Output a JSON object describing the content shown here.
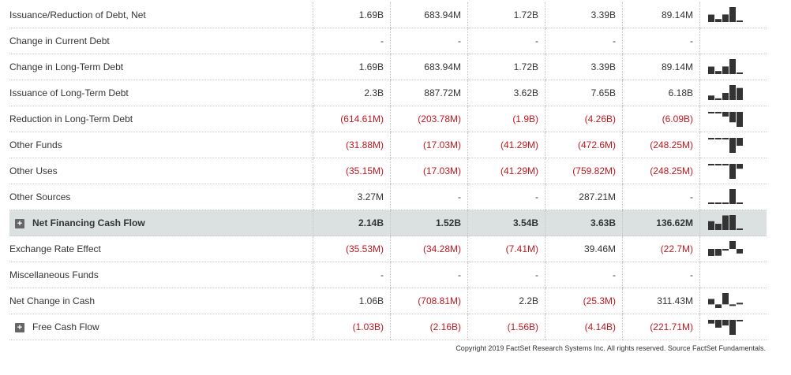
{
  "rows": [
    {
      "label": "Issuance/Reduction of Debt, Net",
      "indent": 0,
      "values": [
        "1.69B",
        "683.94M",
        "1.72B",
        "3.39B",
        "89.14M"
      ],
      "spark": [
        1.69,
        0.68,
        1.72,
        3.39,
        0.09
      ]
    },
    {
      "label": "Change in Current Debt",
      "indent": 1,
      "values": [
        "-",
        "-",
        "-",
        "-",
        "-"
      ],
      "spark": null
    },
    {
      "label": "Change in Long-Term Debt",
      "indent": 1,
      "values": [
        "1.69B",
        "683.94M",
        "1.72B",
        "3.39B",
        "89.14M"
      ],
      "spark": [
        1.69,
        0.68,
        1.72,
        3.39,
        0.09
      ]
    },
    {
      "label": "Issuance of Long-Term Debt",
      "indent": 2,
      "values": [
        "2.3B",
        "887.72M",
        "3.62B",
        "7.65B",
        "6.18B"
      ],
      "spark": [
        2.3,
        0.89,
        3.62,
        7.65,
        6.18
      ]
    },
    {
      "label": "Reduction in Long-Term Debt",
      "indent": 2,
      "values": [
        "(614.61M)",
        "(203.78M)",
        "(1.9B)",
        "(4.26B)",
        "(6.09B)"
      ],
      "spark": [
        -0.61,
        -0.2,
        -1.9,
        -4.26,
        -6.09
      ]
    },
    {
      "label": "Other Funds",
      "indent": 0,
      "values": [
        "(31.88M)",
        "(17.03M)",
        "(41.29M)",
        "(472.6M)",
        "(248.25M)"
      ],
      "spark": [
        -31.88,
        -17.03,
        -41.29,
        -472.6,
        -248.25
      ]
    },
    {
      "label": "Other Uses",
      "indent": 1,
      "values": [
        "(35.15M)",
        "(17.03M)",
        "(41.29M)",
        "(759.82M)",
        "(248.25M)"
      ],
      "spark": [
        -35.15,
        -17.03,
        -41.29,
        -759.82,
        -248.25
      ]
    },
    {
      "label": "Other Sources",
      "indent": 1,
      "values": [
        "3.27M",
        "-",
        "-",
        "287.21M",
        "-"
      ],
      "spark": [
        3.27,
        0,
        0,
        287.21,
        0
      ]
    },
    {
      "label": "Net Financing Cash Flow",
      "indent": 0,
      "highlight": true,
      "expand": true,
      "values": [
        "2.14B",
        "1.52B",
        "3.54B",
        "3.63B",
        "136.62M"
      ],
      "spark": [
        2.14,
        1.52,
        3.54,
        3.63,
        0.14
      ]
    },
    {
      "label": "Exchange Rate Effect",
      "indent": 0,
      "values": [
        "(35.53M)",
        "(34.28M)",
        "(7.41M)",
        "39.46M",
        "(22.7M)"
      ],
      "spark": [
        -35.53,
        -34.28,
        -7.41,
        39.46,
        -22.7
      ]
    },
    {
      "label": "Miscellaneous Funds",
      "indent": 0,
      "values": [
        "-",
        "-",
        "-",
        "-",
        "-"
      ],
      "spark": null
    },
    {
      "label": "Net Change in Cash",
      "indent": 0,
      "values": [
        "1.06B",
        "(708.81M)",
        "2.2B",
        "(25.3M)",
        "311.43M"
      ],
      "spark": [
        1.06,
        -0.71,
        2.2,
        -0.03,
        0.31
      ]
    },
    {
      "label": "Free Cash Flow",
      "indent": 0,
      "expand": true,
      "values": [
        "(1.03B)",
        "(2.16B)",
        "(1.56B)",
        "(4.14B)",
        "(221.71M)"
      ],
      "spark": [
        -1.03,
        -2.16,
        -1.56,
        -4.14,
        -0.22
      ]
    }
  ],
  "expand_symbol": "+",
  "copyright": "Copyright 2019 FactSet Research Systems Inc. All rights reserved. Source FactSet Fundamentals.",
  "colors": {
    "negative": "#c0181f",
    "highlight_bg": "#dbe0e0",
    "spark": "#333333"
  }
}
